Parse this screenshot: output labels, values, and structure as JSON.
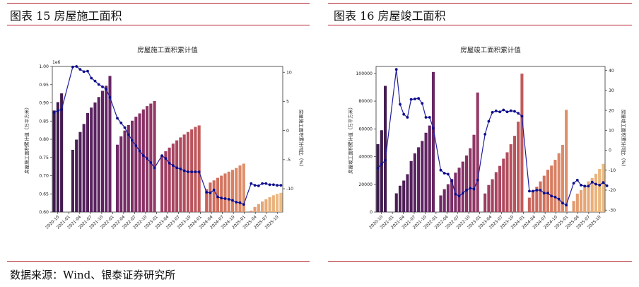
{
  "figures": [
    {
      "title": "图表 15  房屋施工面积"
    },
    {
      "title": "图表 16  房屋竣工面积"
    }
  ],
  "source": "数据来源：Wind、银泰证券研究所",
  "chart_data": [
    {
      "type": "bar",
      "title": "房屋施工面积累计值",
      "ylabel": "房屋施工面积累计值（万平方米）",
      "y2label": "房屋施工面积累计同比（%）",
      "scale_label": "1e6",
      "ylim": [
        0.6,
        1.0
      ],
      "yticks": [
        0.6,
        0.65,
        0.7,
        0.75,
        0.8,
        0.85,
        0.9,
        0.95,
        1.0
      ],
      "ytick_labels": [
        "0.60",
        "0.65",
        "0.70",
        "0.75",
        "0.80",
        "0.85",
        "0.90",
        "0.95",
        "1.00"
      ],
      "y2lim": [
        -14,
        11
      ],
      "y2ticks": [
        -10,
        -5,
        0,
        5,
        10
      ],
      "xtick_labels": [
        "2020-10",
        "2021-01",
        "2021-04",
        "2021-07",
        "2021-10",
        "2022-01",
        "2022-04",
        "2022-07",
        "2022-10",
        "2023-01",
        "2023-04",
        "2023-07",
        "2023-10",
        "2024-01",
        "2024-04",
        "2024-07",
        "2024-10",
        "2025-01",
        "2025-04",
        "2025-07",
        "2025-10"
      ],
      "bars": [
        0.879,
        0.902,
        0.926,
        null,
        null,
        0.771,
        0.799,
        0.82,
        0.842,
        0.872,
        0.887,
        0.901,
        0.916,
        0.933,
        0.947,
        0.974,
        null,
        0.785,
        0.808,
        0.824,
        0.839,
        0.851,
        0.862,
        0.871,
        0.882,
        0.891,
        0.898,
        0.905,
        null,
        0.755,
        0.767,
        0.777,
        0.788,
        0.797,
        0.805,
        0.813,
        0.82,
        0.827,
        0.834,
        0.838,
        null,
        0.663,
        0.681,
        0.687,
        0.694,
        0.7,
        0.706,
        0.711,
        0.716,
        0.721,
        0.728,
        0.733,
        null,
        0.604,
        0.614,
        0.622,
        0.629,
        0.635,
        0.641,
        0.646,
        0.65,
        0.653
      ],
      "line": [
        3.1,
        3.4,
        3.6,
        null,
        null,
        10.9,
        11.0,
        10.5,
        10.1,
        10.2,
        9.0,
        8.5,
        7.9,
        7.5,
        7.1,
        5.7,
        null,
        2.1,
        1.3,
        0.5,
        -0.7,
        -1.7,
        -2.6,
        -3.5,
        -4.3,
        -4.8,
        -5.5,
        -6.4,
        null,
        -4.3,
        -4.8,
        -5.6,
        -6.0,
        -6.4,
        -6.6,
        -6.9,
        -7.1,
        -7.1,
        -7.1,
        -7.1,
        null,
        -10.6,
        -10.7,
        -10.2,
        -11.4,
        -11.6,
        -11.7,
        -11.8,
        -12.0,
        -12.3,
        -12.4,
        -12.7,
        null,
        -9.1,
        -9.4,
        -9.5,
        -9.1,
        -9.1,
        -9.3,
        -9.3,
        -9.4,
        -9.4
      ],
      "colors": [
        "#3d1b4d",
        "#4a1e55",
        "#5a2260",
        "#6e2866",
        "#823066",
        "#973a64",
        "#ac475f",
        "#c05a5b",
        "#d06f5d",
        "#dd8a66",
        "#e6a473",
        "#ecbc83"
      ]
    },
    {
      "type": "bar",
      "title": "房屋竣工面积累计值",
      "ylabel": "房屋竣工面积累计值（万平方米）",
      "y2label": "房屋竣工面积累计同比（%）",
      "ylim": [
        0,
        105000
      ],
      "yticks": [
        0,
        20000,
        40000,
        60000,
        80000,
        100000
      ],
      "ytick_labels": [
        "0",
        "20000",
        "40000",
        "60000",
        "80000",
        "100000"
      ],
      "y2lim": [
        -31,
        42
      ],
      "y2ticks": [
        -30,
        -20,
        -10,
        0,
        10,
        20,
        30,
        40
      ],
      "xtick_labels": [
        "2020-10",
        "2021-01",
        "2021-04",
        "2021-07",
        "2021-10",
        "2022-01",
        "2022-04",
        "2022-07",
        "2022-10",
        "2023-01",
        "2023-04",
        "2023-07",
        "2023-10",
        "2024-01",
        "2024-04",
        "2024-07",
        "2024-10",
        "2025-01",
        "2025-04",
        "2025-07",
        "2025-10"
      ],
      "bars": [
        49000,
        59000,
        91000,
        null,
        null,
        13500,
        19000,
        22700,
        27300,
        36800,
        42300,
        46700,
        51300,
        57200,
        62400,
        101000,
        null,
        12000,
        16500,
        20100,
        23900,
        28400,
        32000,
        36400,
        40800,
        46000,
        55700,
        86200,
        null,
        13400,
        19500,
        23700,
        28800,
        33300,
        38500,
        43100,
        48900,
        55000,
        65200,
        99800,
        null,
        10400,
        15400,
        18300,
        22100,
        26200,
        30500,
        33500,
        37700,
        42400,
        48400,
        73700,
        null,
        8000,
        13300,
        15900,
        19200,
        22100,
        24500,
        27600,
        31100,
        34800
      ],
      "line": [
        -9,
        -7,
        -5,
        null,
        null,
        40.5,
        23,
        18,
        16.5,
        25.5,
        25.7,
        26,
        23.5,
        16.5,
        16.5,
        11,
        null,
        -10,
        -11.5,
        -12,
        -15.4,
        -22,
        -23,
        -21.5,
        -20,
        -19,
        -19.5,
        -15,
        null,
        8,
        14.5,
        19,
        19.7,
        19.2,
        20.2,
        19.2,
        19.8,
        19.5,
        18.5,
        17,
        null,
        -20.5,
        -20.5,
        -20,
        -20,
        -21.5,
        -21.5,
        -23,
        -23.5,
        -24.5,
        -26.5,
        -27.5,
        null,
        -16.5,
        -15,
        -17.5,
        -18,
        -18,
        -16,
        -17,
        -17.5,
        -16.2,
        -17.8
      ]
    }
  ]
}
